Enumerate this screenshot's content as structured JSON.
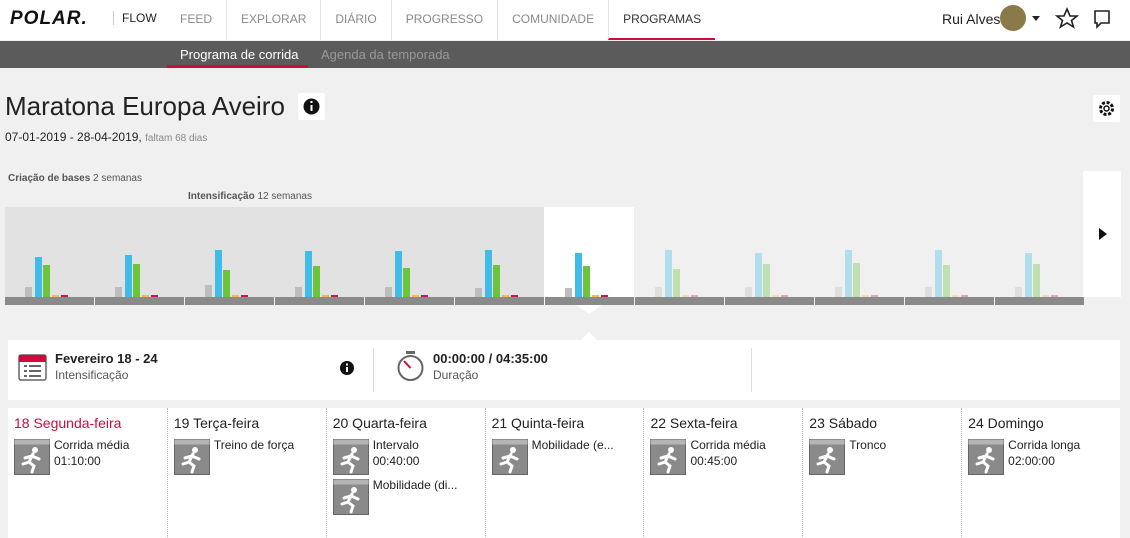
{
  "nav": {
    "logo": "POLAR.",
    "app": "FLOW",
    "items": [
      "FEED",
      "EXPLORAR",
      "DIÁRIO",
      "PROGRESSO",
      "COMUNIDADE",
      "PROGRAMAS"
    ],
    "user": "Rui Alves"
  },
  "subnav": {
    "items": [
      "Programa de corrida",
      "Agenda da temporada"
    ]
  },
  "program": {
    "title": "Maratona Europa Aveiro",
    "dates": "07-01-2019 - 28-04-2019,",
    "remaining": "faltam 68 dias"
  },
  "phases": [
    {
      "name": "Criação de bases",
      "duration": "2 semanas"
    },
    {
      "name": "Intensificação",
      "duration": "12 semanas"
    }
  ],
  "weeks": [
    [
      10,
      40,
      32,
      2,
      2
    ],
    [
      10,
      42,
      33,
      2,
      2
    ],
    [
      12,
      47,
      27,
      2,
      2
    ],
    [
      10,
      46,
      31,
      2,
      2
    ],
    [
      10,
      46,
      29,
      2,
      2
    ],
    [
      9,
      47,
      32,
      2,
      2
    ],
    [
      9,
      44,
      31,
      2,
      2
    ],
    [
      10,
      47,
      28,
      2,
      2
    ],
    [
      10,
      44,
      33,
      2,
      2
    ],
    [
      10,
      47,
      34,
      2,
      2
    ],
    [
      10,
      47,
      32,
      2,
      2
    ],
    [
      10,
      44,
      33,
      2,
      2
    ]
  ],
  "week_summary": {
    "dates": "Fevereiro 18 - 24",
    "phase": "Intensificação",
    "time": "00:00:00 / 04:35:00",
    "time_label": "Duração"
  },
  "days": [
    {
      "label": "18 Segunda-feira",
      "sessions": [
        {
          "name": "Corrida média",
          "duration": "01:10:00"
        }
      ]
    },
    {
      "label": "19 Terça-feira",
      "sessions": [
        {
          "name": "Treino de força"
        }
      ]
    },
    {
      "label": "20 Quarta-feira",
      "sessions": [
        {
          "name": "Intervalo",
          "duration": "00:40:00"
        },
        {
          "name": "Mobilidade (di..."
        }
      ]
    },
    {
      "label": "21 Quinta-feira",
      "sessions": [
        {
          "name": "Mobilidade (e..."
        }
      ]
    },
    {
      "label": "22 Sexta-feira",
      "sessions": [
        {
          "name": "Corrida média",
          "duration": "00:45:00"
        }
      ]
    },
    {
      "label": "23 Sábado",
      "sessions": [
        {
          "name": "Tronco"
        }
      ]
    },
    {
      "label": "24 Domingo",
      "sessions": [
        {
          "name": "Corrida longa",
          "duration": "02:00:00"
        }
      ]
    }
  ]
}
